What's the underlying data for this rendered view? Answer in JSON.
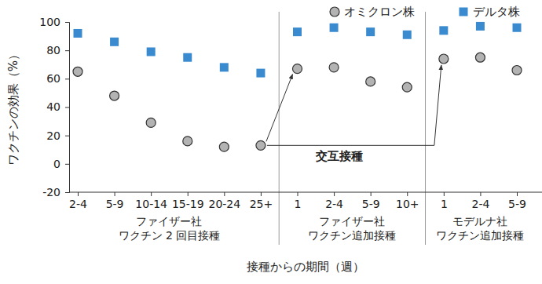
{
  "chart_data": {
    "type": "scatter",
    "categories": [
      "2-4",
      "5-9",
      "10-14",
      "15-19",
      "20-24",
      "25+",
      "1",
      "2-4",
      "5-9",
      "10+",
      "1",
      "2-4",
      "5-9"
    ],
    "series": [
      {
        "name": "オミクロン株",
        "color": "#b3b3b3",
        "marker": "circle",
        "values": [
          65,
          48,
          29,
          16,
          12,
          13,
          67,
          68,
          58,
          54,
          74,
          75,
          66
        ]
      },
      {
        "name": "デルタ株",
        "color": "#3a8ad0",
        "marker": "square",
        "values": [
          92,
          86,
          79,
          75,
          68,
          64,
          93,
          96,
          93,
          91,
          94,
          97,
          96
        ]
      }
    ],
    "y_label": "ワクチンの効果（%）",
    "x_label": "接種からの期間（週）",
    "ylim": [
      -20,
      100
    ],
    "yticks": [
      -20,
      0,
      20,
      40,
      60,
      80,
      100
    ],
    "groups": [
      {
        "label": [
          "ファイザー社",
          "ワクチン 2 回目接種"
        ],
        "count": 6
      },
      {
        "label": [
          "ファイザー社",
          "ワクチン追加接種"
        ],
        "count": 4
      },
      {
        "label": [
          "モデルナ社",
          "ワクチン追加接種"
        ],
        "count": 3
      }
    ],
    "annotation": "交互接種",
    "legend": "top-right"
  }
}
